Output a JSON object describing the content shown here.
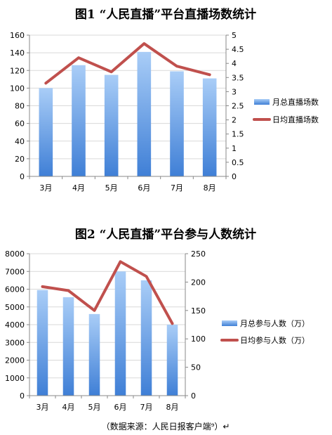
{
  "chart_data": [
    {
      "type": "bar",
      "title": "图1 “人民直播”平台直播场数统计",
      "categories": [
        "3月",
        "4月",
        "5月",
        "6月",
        "7月",
        "8月"
      ],
      "series": [
        {
          "name": "月总直播场数",
          "type": "bar",
          "axis": "left",
          "values": [
            100,
            126,
            115,
            141,
            119,
            111
          ]
        },
        {
          "name": "日均直播场数",
          "type": "line",
          "axis": "right",
          "values": [
            3.3,
            4.2,
            3.7,
            4.7,
            3.9,
            3.6
          ]
        }
      ],
      "ylim": [
        0,
        160
      ],
      "yticks": [
        "0",
        "20",
        "40",
        "60",
        "80",
        "100",
        "120",
        "140",
        "160"
      ],
      "y2lim": [
        0,
        5
      ],
      "y2ticks": [
        "0",
        "0.5",
        "1",
        "1.5",
        "2",
        "2.5",
        "3",
        "3.5",
        "4",
        "4.5",
        "5"
      ],
      "legend": "right",
      "colors": {
        "bar": "#6fa8ec",
        "line": "#c0504d"
      }
    },
    {
      "type": "bar",
      "title": "图2 “人民直播”平台参与人数统计",
      "categories": [
        "3月",
        "4月",
        "5月",
        "6月",
        "7月",
        "8月"
      ],
      "series": [
        {
          "name": "月总参与人数（万）",
          "type": "bar",
          "axis": "left",
          "values": [
            5950,
            5550,
            4600,
            7000,
            6500,
            4000
          ]
        },
        {
          "name": "日均参与人数（万）",
          "type": "line",
          "axis": "right",
          "values": [
            192,
            185,
            150,
            236,
            210,
            127
          ]
        }
      ],
      "ylim": [
        0,
        8000
      ],
      "yticks": [
        "0",
        "1000",
        "2000",
        "3000",
        "4000",
        "5000",
        "6000",
        "7000",
        "8000"
      ],
      "y2lim": [
        0,
        250
      ],
      "y2ticks": [
        "0",
        "50",
        "100",
        "150",
        "200",
        "250"
      ],
      "legend": "right",
      "colors": {
        "bar": "#6fa8ec",
        "line": "#c0504d"
      }
    }
  ],
  "source": "（数据来源：人民日报客户端⁹）↵"
}
